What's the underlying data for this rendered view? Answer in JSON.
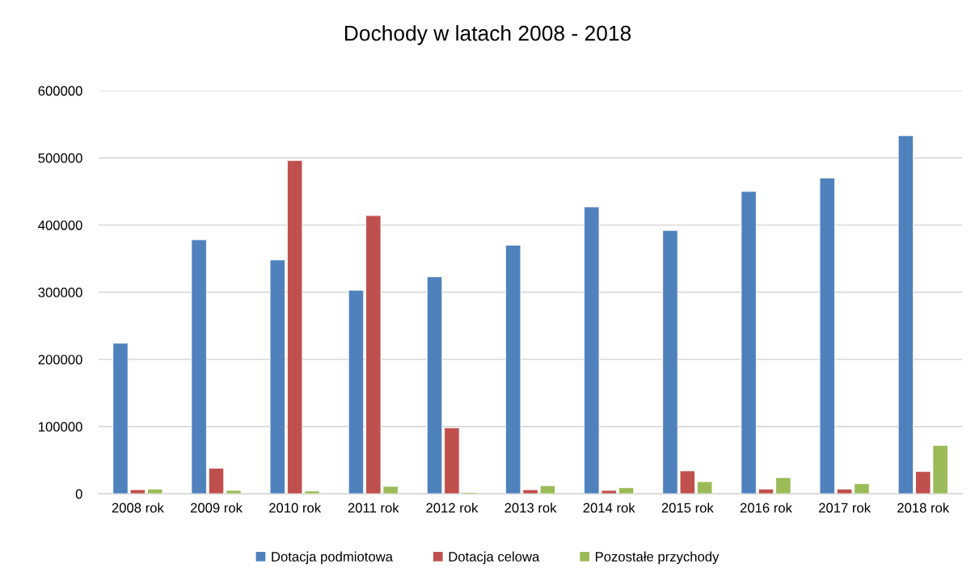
{
  "chart_data": {
    "type": "bar",
    "title": "Dochody w latach 2008 - 2018",
    "categories": [
      "2008 rok",
      "2009 rok",
      "2010 rok",
      "2011 rok",
      "2012 rok",
      "2013 rok",
      "2014 rok",
      "2015 rok",
      "2016 rok",
      "2017 rok",
      "2018 rok"
    ],
    "series": [
      {
        "name": "Dotacja podmiotowa",
        "color": "#4f81bd",
        "values": [
          224000,
          378000,
          348000,
          303000,
          323000,
          370000,
          427000,
          392000,
          450000,
          470000,
          533000
        ]
      },
      {
        "name": "Dotacja celowa",
        "color": "#c0504d",
        "values": [
          6000,
          38000,
          496000,
          414000,
          98000,
          6000,
          5000,
          34000,
          7000,
          7000,
          33000
        ]
      },
      {
        "name": "Pozostałe przychody",
        "color": "#9bbb59",
        "values": [
          7000,
          5000,
          4000,
          11000,
          2000,
          12000,
          9000,
          18000,
          24000,
          15000,
          72000
        ]
      }
    ],
    "ylim": [
      0,
      600000
    ],
    "yticks": [
      0,
      100000,
      200000,
      300000,
      400000,
      500000,
      600000
    ],
    "grid": "y",
    "legend": "bottom"
  }
}
